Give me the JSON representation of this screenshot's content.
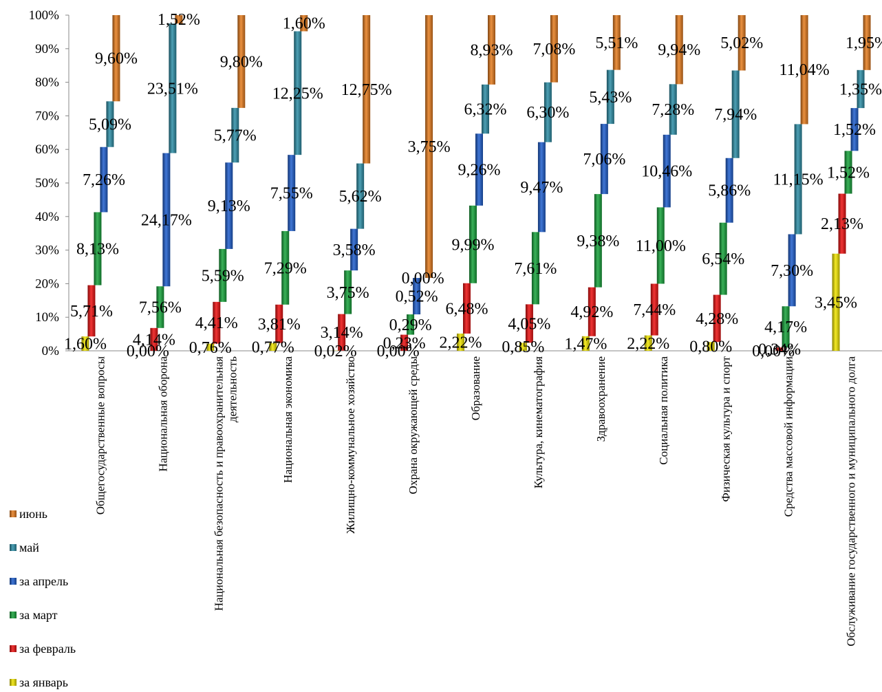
{
  "chart_data": {
    "type": "bar",
    "stacked": "100%",
    "y_axis": {
      "ticks": [
        "0%",
        "10%",
        "20%",
        "30%",
        "40%",
        "50%",
        "60%",
        "70%",
        "80%",
        "90%",
        "100%"
      ],
      "range": [
        0,
        100
      ]
    },
    "grid": false,
    "legend_position": "bottom-left",
    "categories": [
      "Общегосударственные вопросы",
      "Национальная оборона",
      "Национальная безопасность и правоохранительная деятельность",
      "Национальная экономика",
      "Жилищно-коммунальное хозяйство",
      "Охрана окружающей среды",
      "Образование",
      "Культура, кинематография",
      "Здравоохранение",
      "Социальная политика",
      "Физическая культура и спорт",
      "Средства массовой информации",
      "Обслуживание государственного и муниципального долга"
    ],
    "series": [
      {
        "name": "за январь",
        "color": "#f2e600",
        "labels": [
          "1,60%",
          "0,00%",
          "0,76%",
          "0,77%",
          "0,02%",
          "0,00%",
          "2,22%",
          "0,85%",
          "1,47%",
          "2,22%",
          "0,80%",
          "0,00%",
          "3,45%"
        ],
        "values": [
          1.6,
          0.0,
          0.76,
          0.77,
          0.02,
          0.0,
          2.22,
          0.85,
          1.47,
          2.22,
          0.8,
          0.0,
          3.45
        ]
      },
      {
        "name": "за февраль",
        "color": "#ee1111",
        "labels": [
          "5,71%",
          "4,14%",
          "4,41%",
          "3,81%",
          "3,14%",
          "0,23%",
          "6,48%",
          "4,05%",
          "4,92%",
          "7,44%",
          "4,28%",
          "0,34%",
          "2,13%"
        ],
        "values": [
          5.71,
          4.14,
          4.41,
          3.81,
          3.14,
          0.23,
          6.48,
          4.05,
          4.92,
          7.44,
          4.28,
          0.34,
          2.13
        ]
      },
      {
        "name": "за март",
        "color": "#17a43c",
        "labels": [
          "8,13%",
          "7,56%",
          "5,59%",
          "7,29%",
          "3,75%",
          "0,29%",
          "9,99%",
          "7,61%",
          "9,38%",
          "11,00%",
          "6,54%",
          "4,17%",
          "1,52%"
        ],
        "values": [
          8.13,
          7.56,
          5.59,
          7.29,
          3.75,
          0.29,
          9.99,
          7.61,
          9.38,
          11.0,
          6.54,
          4.17,
          1.52
        ]
      },
      {
        "name": "за апрель",
        "color": "#1f5fcf",
        "labels": [
          "7,26%",
          "24,17%",
          "9,13%",
          "7,55%",
          "3,58%",
          "0,52%",
          "9,26%",
          "9,47%",
          "7,06%",
          "10,46%",
          "5,86%",
          "7,30%",
          "1,52%"
        ],
        "values": [
          7.26,
          24.17,
          9.13,
          7.55,
          3.58,
          0.52,
          9.26,
          9.47,
          7.06,
          10.46,
          5.86,
          7.3,
          1.52
        ]
      },
      {
        "name": "май",
        "color": "#2e8fa8",
        "labels": [
          "5,09%",
          "23,51%",
          "5,77%",
          "12,25%",
          "5,62%",
          "0,00%",
          "6,32%",
          "6,30%",
          "5,43%",
          "7,28%",
          "7,94%",
          "11,15%",
          "1,35%"
        ],
        "values": [
          5.09,
          23.51,
          5.77,
          12.25,
          5.62,
          0.0,
          6.32,
          6.3,
          5.43,
          7.28,
          7.94,
          11.15,
          1.35
        ]
      },
      {
        "name": "июнь",
        "color": "#e87d1e",
        "labels": [
          "9,60%",
          "1,52%",
          "9,80%",
          "1,60%",
          "12,75%",
          "3,75%",
          "8,93%",
          "7,08%",
          "5,51%",
          "9,94%",
          "5,02%",
          "11,04%",
          "1,95%"
        ],
        "values": [
          9.6,
          1.52,
          9.8,
          1.6,
          12.75,
          3.75,
          8.93,
          7.08,
          5.51,
          9.94,
          5.02,
          11.04,
          1.95
        ]
      }
    ]
  }
}
